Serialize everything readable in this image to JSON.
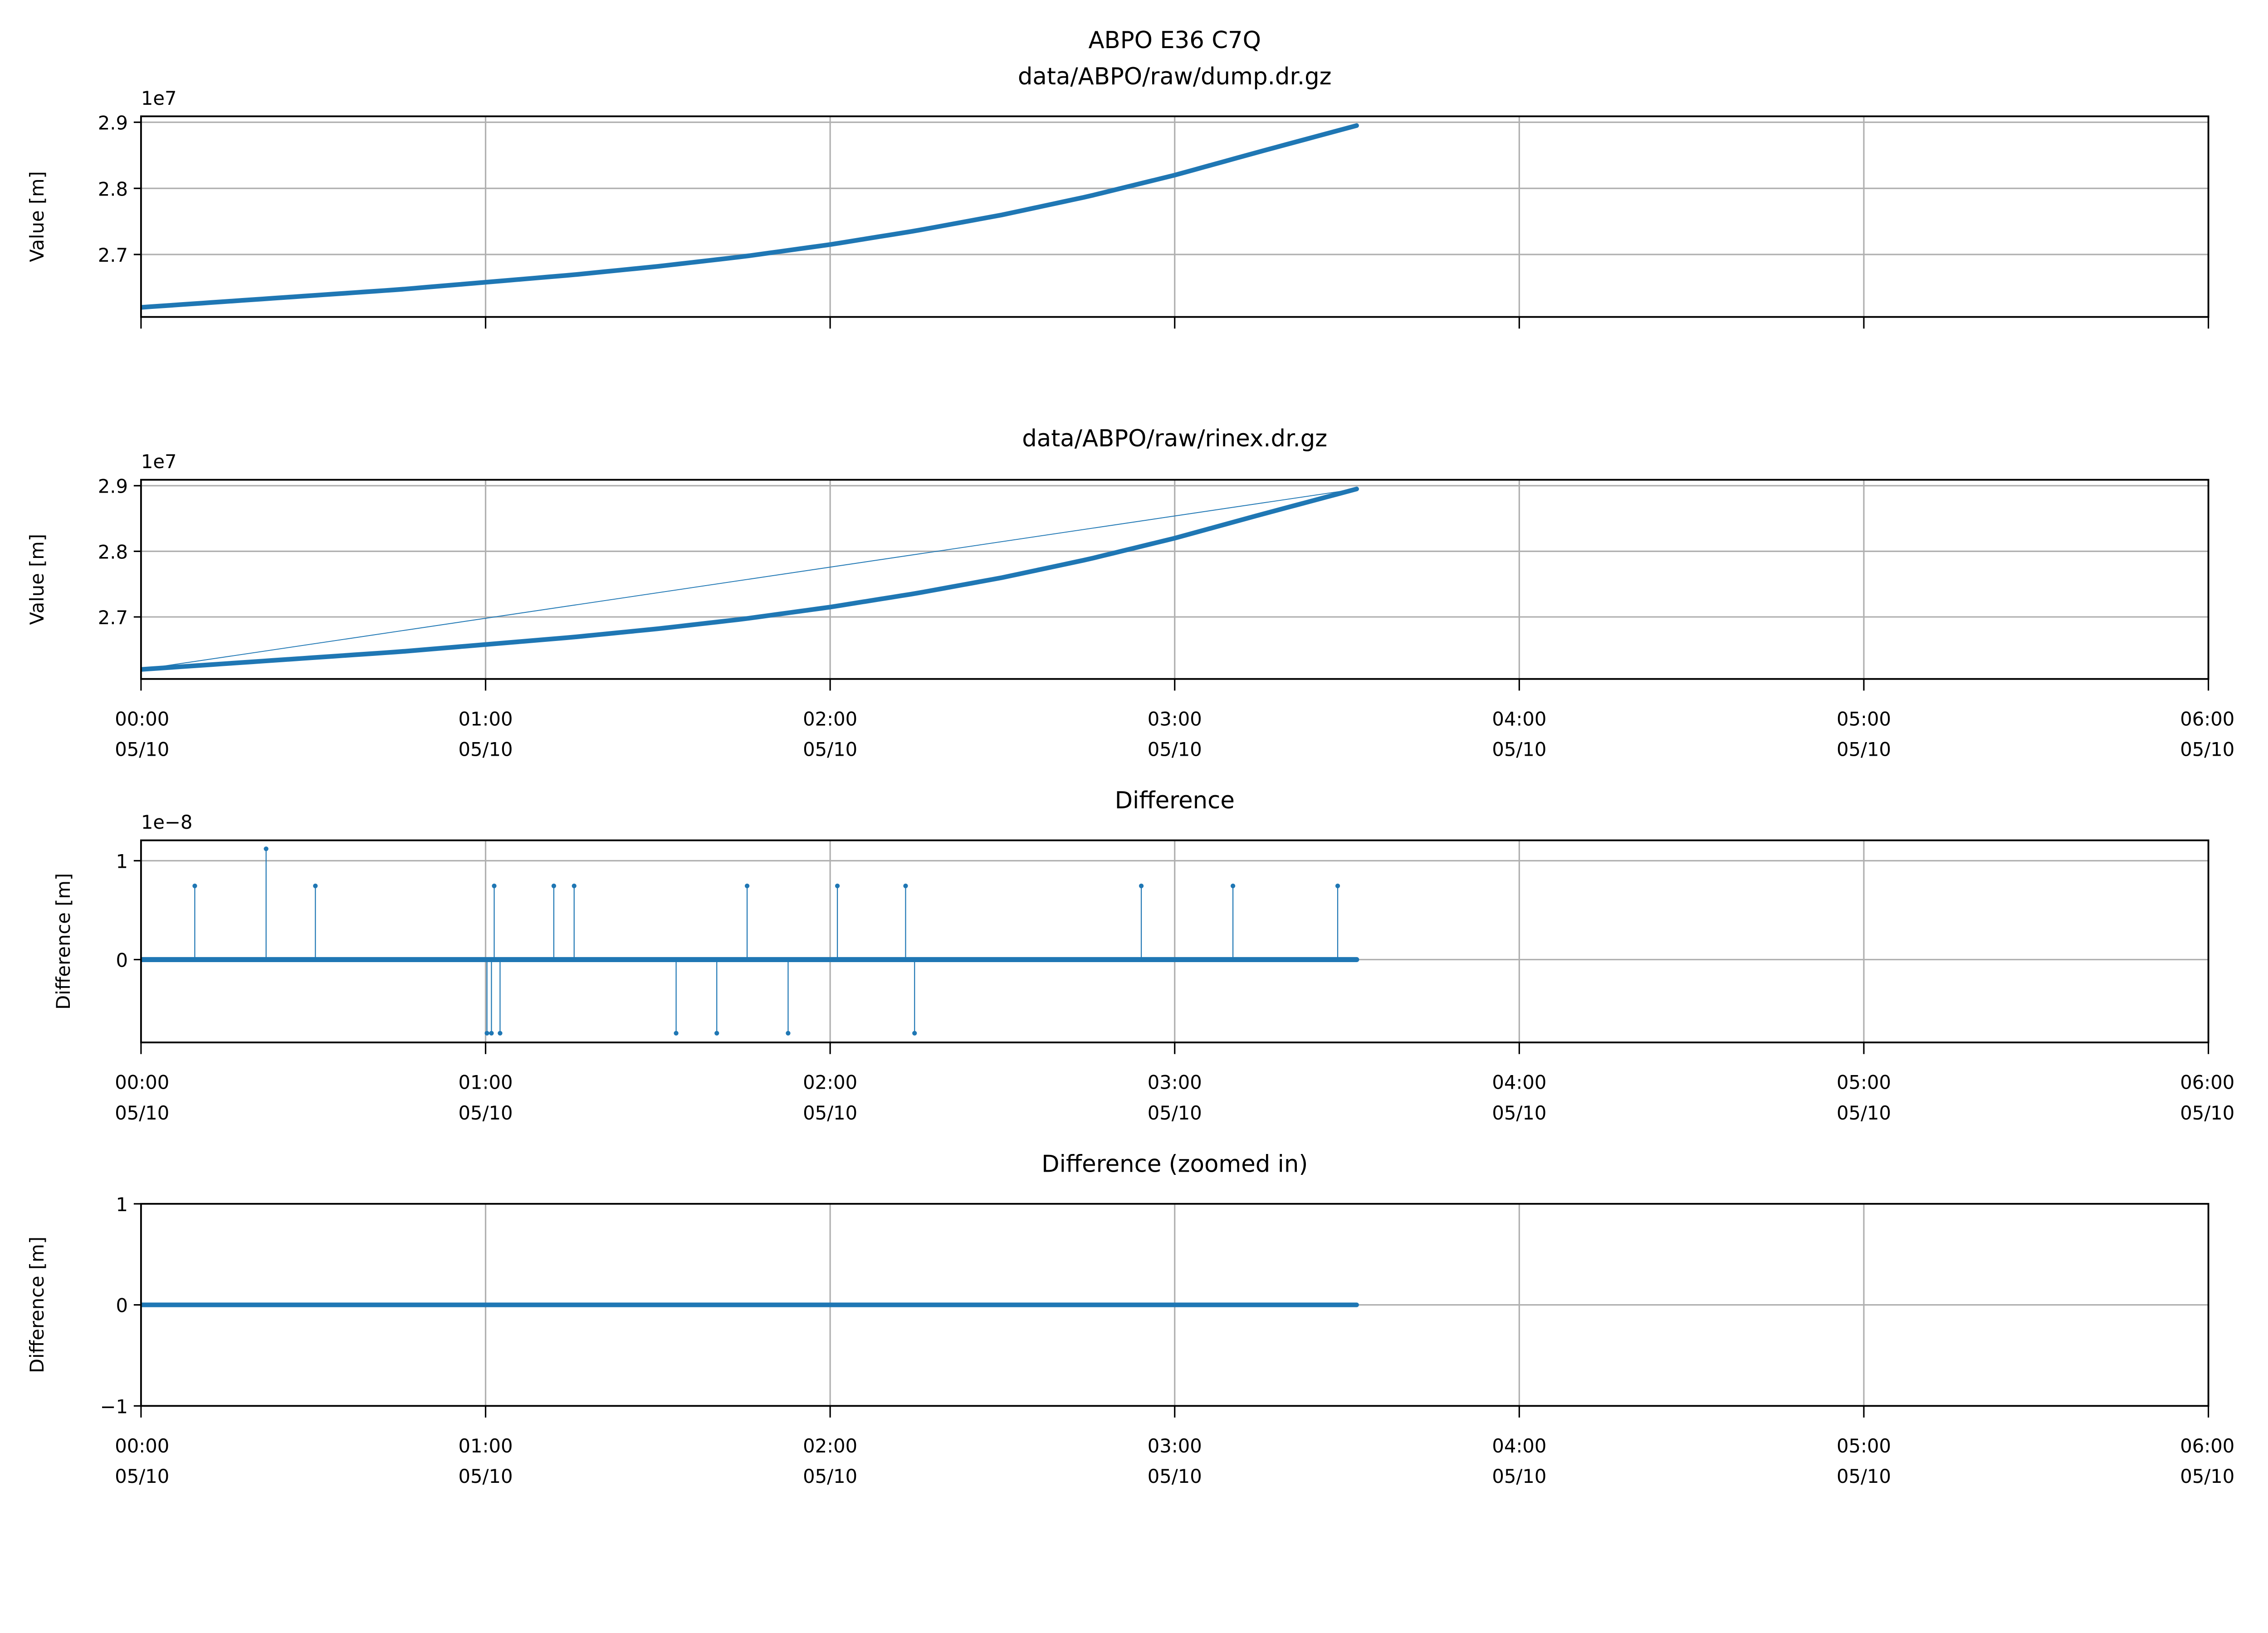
{
  "chart_data": [
    {
      "type": "line",
      "suptitle": "ABPO E36 C7Q",
      "title": "data/ABPO/raw/dump.dr.gz",
      "ylabel": "Value [m]",
      "offset_label": "1e7",
      "ylim": [
        2.6055,
        2.909
      ],
      "yticks": [
        "2.7",
        "2.8",
        "2.9"
      ],
      "ytick_values": [
        2.7,
        2.8,
        2.9
      ],
      "xlim_hours": [
        0,
        6
      ],
      "show_xticklabels": false,
      "series": [
        {
          "name": "dump",
          "color": "#1f77b4",
          "x_hours": [
            0,
            0.25,
            0.5,
            0.75,
            1,
            1.25,
            1.5,
            1.75,
            2,
            2.25,
            2.5,
            2.75,
            3,
            3.25,
            3.528
          ],
          "y": [
            2.62,
            2.629,
            2.638,
            2.647,
            2.658,
            2.669,
            2.682,
            2.697,
            2.715,
            2.736,
            2.76,
            2.788,
            2.82,
            2.856,
            2.895
          ]
        }
      ]
    },
    {
      "type": "line",
      "title": "data/ABPO/raw/rinex.dr.gz",
      "ylabel": "Value [m]",
      "offset_label": "1e7",
      "ylim": [
        2.6055,
        2.909
      ],
      "yticks": [
        "2.7",
        "2.8",
        "2.9"
      ],
      "ytick_values": [
        2.7,
        2.8,
        2.9
      ],
      "xlim_hours": [
        0,
        6
      ],
      "show_xticklabels": true,
      "series": [
        {
          "name": "rinex",
          "color": "#1f77b4",
          "x_hours": [
            0,
            0.25,
            0.5,
            0.75,
            1,
            1.25,
            1.5,
            1.75,
            2,
            2.25,
            2.5,
            2.75,
            3,
            3.25,
            3.528
          ],
          "y": [
            2.62,
            2.629,
            2.638,
            2.647,
            2.658,
            2.669,
            2.682,
            2.697,
            2.715,
            2.736,
            2.76,
            2.788,
            2.82,
            2.856,
            2.895
          ]
        },
        {
          "name": "rinex-connector",
          "color": "#1f77b4",
          "thin": true,
          "x_hours": [
            0,
            3.528
          ],
          "y": [
            2.62,
            2.895
          ]
        }
      ]
    },
    {
      "type": "stem",
      "title": "Difference",
      "ylabel": "Difference [m]",
      "offset_label": "1e−8",
      "ylim": [
        -0.838,
        1.206
      ],
      "yticks": [
        "0",
        "1"
      ],
      "ytick_values": [
        0,
        1
      ],
      "xlim_hours": [
        0,
        6
      ],
      "show_xticklabels": true,
      "baseline_hours": [
        0,
        3.528
      ],
      "spikes_x_hours": [
        0.156,
        0.363,
        0.506,
        1.004,
        1.017,
        1.025,
        1.042,
        1.198,
        1.257,
        1.553,
        1.671,
        1.759,
        1.878,
        2.021,
        2.219,
        2.245,
        2.903,
        3.169,
        3.473
      ],
      "spikes_y": [
        0.745,
        1.12,
        0.745,
        -0.745,
        -0.745,
        0.745,
        -0.745,
        0.745,
        0.745,
        -0.745,
        -0.745,
        0.745,
        -0.745,
        0.745,
        0.745,
        -0.745,
        0.745,
        0.745,
        0.745
      ]
    },
    {
      "type": "line",
      "title": "Difference (zoomed in)",
      "ylabel": "Difference [m]",
      "ylim": [
        -1,
        1
      ],
      "yticks": [
        "−1",
        "0",
        "1"
      ],
      "ytick_values": [
        -1,
        0,
        1
      ],
      "xlim_hours": [
        0,
        6
      ],
      "show_xticklabels": true,
      "series": [
        {
          "name": "difference",
          "color": "#1f77b4",
          "x_hours": [
            0,
            3.528
          ],
          "y": [
            0,
            0
          ]
        }
      ]
    }
  ],
  "x_tick_times": [
    "00:00",
    "01:00",
    "02:00",
    "03:00",
    "04:00",
    "05:00",
    "06:00"
  ],
  "x_tick_date": "05/10"
}
